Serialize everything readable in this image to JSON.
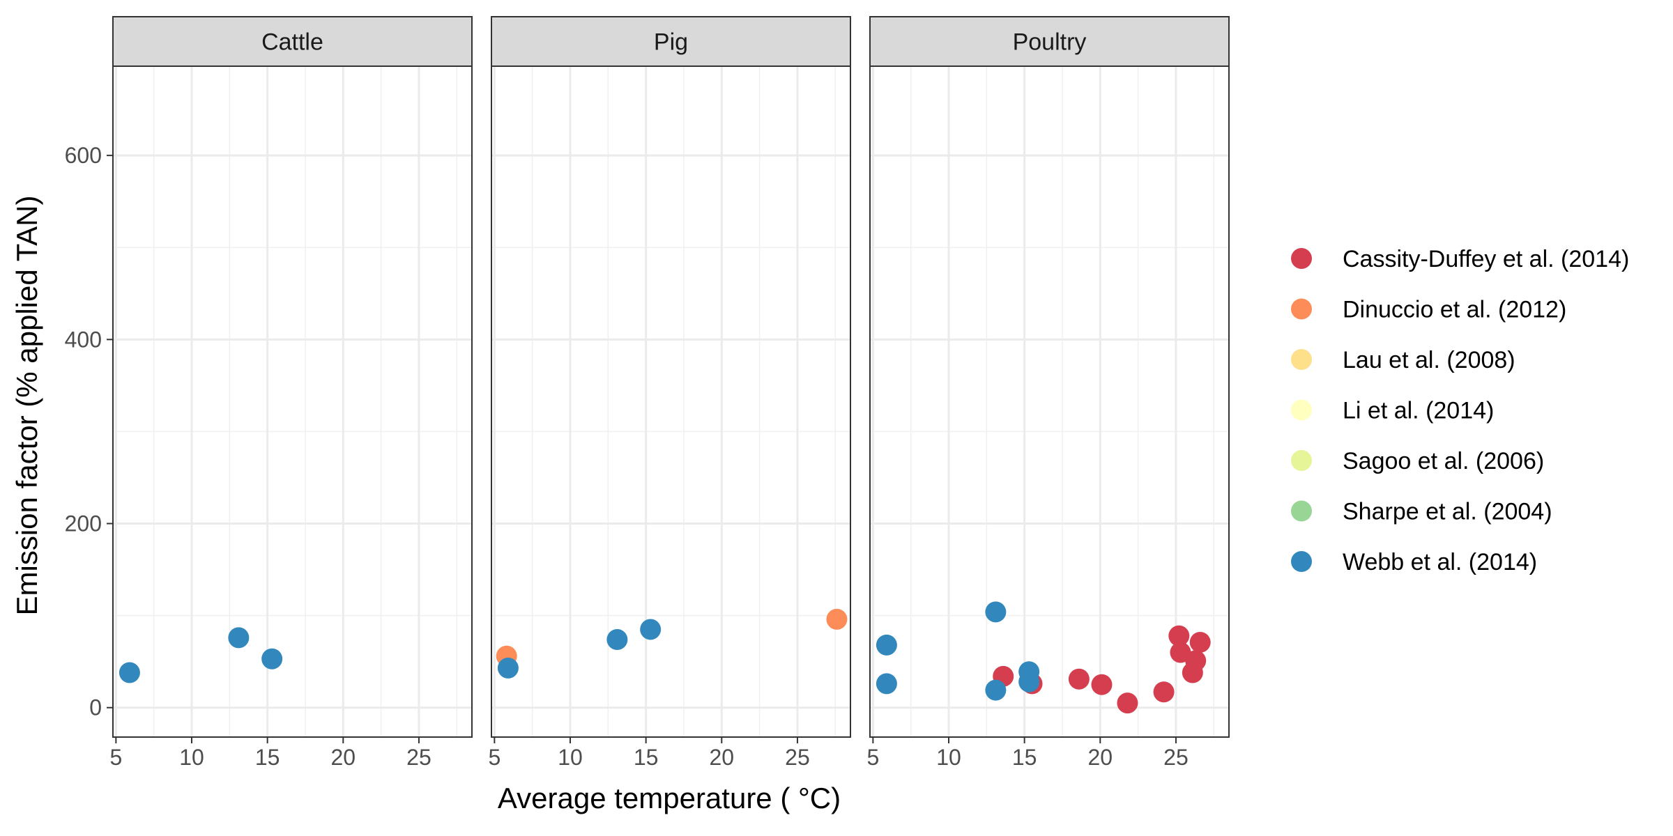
{
  "chart_data": {
    "type": "scatter",
    "xlabel": "Average temperature ( °C)",
    "ylabel": "Emission factor (% applied TAN)",
    "xlim": [
      4.8,
      28.5
    ],
    "ylim": [
      -32,
      697
    ],
    "x_ticks": [
      5,
      10,
      15,
      20,
      25
    ],
    "y_ticks": [
      0,
      200,
      400,
      600
    ],
    "grid": true,
    "legend_position": "right",
    "legend": [
      {
        "name": "Cassity-Duffey et al. (2014)",
        "color": "#D53E4F"
      },
      {
        "name": "Dinuccio et al. (2012)",
        "color": "#FC8D59"
      },
      {
        "name": "Lau et al. (2008)",
        "color": "#FEE08B"
      },
      {
        "name": "Li et al. (2014)",
        "color": "#FFFFBF"
      },
      {
        "name": "Sagoo et al. (2006)",
        "color": "#E6F598"
      },
      {
        "name": "Sharpe et al. (2004)",
        "color": "#99D594"
      },
      {
        "name": "Webb et al. (2014)",
        "color": "#3288BD"
      }
    ],
    "facets": [
      {
        "label": "Cattle",
        "points": [
          {
            "x": 5.9,
            "y": 38,
            "series": "Webb et al. (2014)"
          },
          {
            "x": 13.1,
            "y": 76,
            "series": "Webb et al. (2014)"
          },
          {
            "x": 15.3,
            "y": 53,
            "series": "Webb et al. (2014)"
          }
        ]
      },
      {
        "label": "Pig",
        "points": [
          {
            "x": 5.8,
            "y": 56,
            "series": "Dinuccio et al. (2012)"
          },
          {
            "x": 27.6,
            "y": 96,
            "series": "Dinuccio et al. (2012)"
          },
          {
            "x": 5.9,
            "y": 43,
            "series": "Webb et al. (2014)"
          },
          {
            "x": 13.1,
            "y": 74,
            "series": "Webb et al. (2014)"
          },
          {
            "x": 15.3,
            "y": 85,
            "series": "Webb et al. (2014)"
          }
        ]
      },
      {
        "label": "Poultry",
        "points": [
          {
            "x": 13.6,
            "y": 34,
            "series": "Cassity-Duffey et al. (2014)"
          },
          {
            "x": 15.5,
            "y": 26,
            "series": "Cassity-Duffey et al. (2014)"
          },
          {
            "x": 18.6,
            "y": 31,
            "series": "Cassity-Duffey et al. (2014)"
          },
          {
            "x": 20.1,
            "y": 25,
            "series": "Cassity-Duffey et al. (2014)"
          },
          {
            "x": 21.8,
            "y": 5,
            "series": "Cassity-Duffey et al. (2014)"
          },
          {
            "x": 24.2,
            "y": 17,
            "series": "Cassity-Duffey et al. (2014)"
          },
          {
            "x": 25.2,
            "y": 78,
            "series": "Cassity-Duffey et al. (2014)"
          },
          {
            "x": 25.3,
            "y": 60,
            "series": "Cassity-Duffey et al. (2014)"
          },
          {
            "x": 26.3,
            "y": 51,
            "series": "Cassity-Duffey et al. (2014)"
          },
          {
            "x": 26.6,
            "y": 71,
            "series": "Cassity-Duffey et al. (2014)"
          },
          {
            "x": 26.1,
            "y": 38,
            "series": "Cassity-Duffey et al. (2014)"
          },
          {
            "x": 5.9,
            "y": 68,
            "series": "Webb et al. (2014)"
          },
          {
            "x": 5.9,
            "y": 26,
            "series": "Webb et al. (2014)"
          },
          {
            "x": 13.1,
            "y": 104,
            "series": "Webb et al. (2014)"
          },
          {
            "x": 13.1,
            "y": 19,
            "series": "Webb et al. (2014)"
          },
          {
            "x": 15.3,
            "y": 39,
            "series": "Webb et al. (2014)"
          },
          {
            "x": 15.3,
            "y": 28,
            "series": "Webb et al. (2014)"
          }
        ]
      }
    ]
  }
}
